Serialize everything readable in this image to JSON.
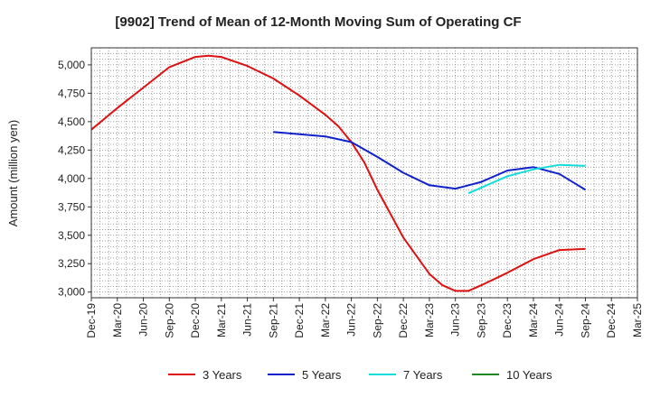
{
  "chart_data": {
    "type": "line",
    "title": "[9902]  Trend of Mean of 12-Month Moving Sum of Operating CF",
    "xlabel": "",
    "ylabel": "Amount (million yen)",
    "ylim": [
      2950,
      5150
    ],
    "yticks": [
      3000,
      3250,
      3500,
      3750,
      4000,
      4250,
      4500,
      4750,
      5000
    ],
    "ytick_labels": [
      "3,000",
      "3,250",
      "3,500",
      "3,750",
      "4,000",
      "4,250",
      "4,500",
      "4,750",
      "5,000"
    ],
    "xticks": [
      "Dec-19",
      "Mar-20",
      "Jun-20",
      "Sep-20",
      "Dec-20",
      "Mar-21",
      "Jun-21",
      "Sep-21",
      "Dec-21",
      "Mar-22",
      "Jun-22",
      "Sep-22",
      "Dec-22",
      "Mar-23",
      "Jun-23",
      "Sep-23",
      "Dec-23",
      "Mar-24",
      "Jun-24",
      "Sep-24",
      "Dec-24",
      "Mar-25"
    ],
    "grid": true,
    "legend_position": "bottom",
    "series": [
      {
        "name": "3 Years",
        "color": "#dd1111",
        "x": [
          0,
          1,
          2,
          3,
          4,
          4.5,
          5,
          6,
          7,
          8,
          9,
          9.5,
          10,
          10.5,
          11,
          12,
          13,
          13.5,
          14,
          14.5,
          15,
          16,
          17,
          18,
          19
        ],
        "values": [
          4430,
          4620,
          4800,
          4980,
          5070,
          5080,
          5070,
          4990,
          4880,
          4730,
          4560,
          4460,
          4320,
          4140,
          3900,
          3480,
          3160,
          3060,
          3010,
          3010,
          3060,
          3170,
          3290,
          3370,
          3380
        ]
      },
      {
        "name": "5 Years",
        "color": "#1122cc",
        "x": [
          7,
          8,
          9,
          10,
          11,
          12,
          13,
          14,
          15,
          16,
          17,
          18,
          19
        ],
        "values": [
          4410,
          4390,
          4370,
          4320,
          4190,
          4050,
          3940,
          3910,
          3970,
          4070,
          4100,
          4040,
          3900
        ]
      },
      {
        "name": "7 Years",
        "color": "#11dddd",
        "x": [
          14.5,
          15,
          16,
          17,
          18,
          19
        ],
        "values": [
          3870,
          3920,
          4020,
          4080,
          4120,
          4110
        ]
      },
      {
        "name": "10 Years",
        "color": "#228822",
        "x": [],
        "values": []
      }
    ]
  }
}
